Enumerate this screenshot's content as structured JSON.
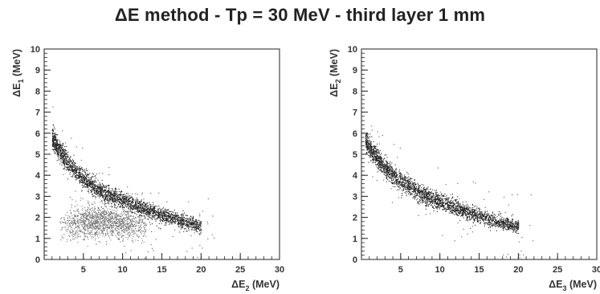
{
  "title": "ΔE method - Tp = 30 MeV - third layer 1 mm",
  "chart_data": [
    {
      "type": "scatter",
      "xlabel": "ΔE₂ (MeV)",
      "xlabel_main": "ΔE",
      "xlabel_sub": "2",
      "xlabel_unit": " (MeV)",
      "ylabel": "ΔE₁ (MeV)",
      "ylabel_main": "ΔE",
      "ylabel_sub": "1",
      "ylabel_unit": " (MeV)",
      "xlim": [
        0,
        30
      ],
      "ylim": [
        0,
        10
      ],
      "xticks": [
        5,
        10,
        15,
        20,
        25,
        30
      ],
      "yticks": [
        0,
        1,
        2,
        3,
        4,
        5,
        6,
        7,
        8,
        9,
        10
      ],
      "grid": false,
      "series": [
        {
          "band": "upper",
          "density": "high",
          "x": [
            1,
            2,
            3,
            4,
            5,
            6,
            7,
            8,
            9,
            10,
            11,
            12,
            13,
            14,
            15,
            16,
            17,
            18,
            20
          ],
          "y": [
            5.8,
            5.1,
            4.6,
            4.2,
            3.85,
            3.55,
            3.3,
            3.1,
            2.95,
            2.8,
            2.65,
            2.5,
            2.38,
            2.25,
            2.12,
            2.0,
            1.9,
            1.8,
            1.6
          ]
        },
        {
          "band": "lower",
          "density": "medium",
          "x": [
            3,
            4,
            5,
            6,
            7,
            8,
            9,
            10,
            11,
            12
          ],
          "y": [
            1.6,
            1.75,
            1.8,
            1.85,
            1.85,
            1.8,
            1.75,
            1.7,
            1.65,
            1.6
          ]
        }
      ]
    },
    {
      "type": "scatter",
      "xlabel": "ΔE₃ (MeV)",
      "xlabel_main": "ΔE",
      "xlabel_sub": "3",
      "xlabel_unit": " (MeV)",
      "ylabel": "ΔE₂ (MeV)",
      "ylabel_main": "ΔE",
      "ylabel_sub": "2",
      "ylabel_unit": " (MeV)",
      "xlim": [
        0,
        30
      ],
      "ylim": [
        0,
        10
      ],
      "xticks": [
        5,
        10,
        15,
        20,
        25,
        30
      ],
      "yticks": [
        0,
        1,
        2,
        3,
        4,
        5,
        6,
        7,
        8,
        9,
        10
      ],
      "grid": false,
      "series": [
        {
          "band": "main",
          "density": "high",
          "x": [
            0.5,
            2,
            4,
            6,
            8,
            10,
            12,
            14,
            16,
            18,
            20
          ],
          "y": [
            5.6,
            4.8,
            4.0,
            3.5,
            3.05,
            2.75,
            2.45,
            2.2,
            1.95,
            1.75,
            1.6
          ]
        }
      ]
    }
  ]
}
